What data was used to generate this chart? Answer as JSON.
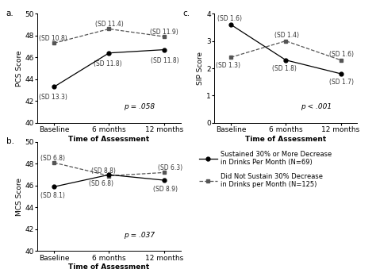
{
  "timepoints": [
    "Baseline",
    "6 months",
    "12 months"
  ],
  "pcs": {
    "solid_circle": [
      43.3,
      46.4,
      46.7
    ],
    "dashed_square": [
      47.3,
      48.6,
      47.9
    ],
    "solid_sd": [
      "(SD 13.3)",
      "(SD 11.8)",
      "(SD 11.8)"
    ],
    "dashed_sd": [
      "(SD 10.8)",
      "(SD 11.4)",
      "(SD 11.9)"
    ],
    "ylabel": "PCS Score",
    "ylim": [
      40,
      50
    ],
    "yticks": [
      40,
      42,
      44,
      46,
      48,
      50
    ],
    "pvalue": "p = .058",
    "label": "a."
  },
  "mcs": {
    "solid_circle": [
      45.9,
      47.0,
      46.5
    ],
    "dashed_square": [
      48.1,
      46.9,
      47.2
    ],
    "solid_sd": [
      "(SD 8.1)",
      "(SD 6.8)",
      "(SD 8.9)"
    ],
    "dashed_sd": [
      "(SD 6.8)",
      "(SD 8.8)",
      "(SD 6.3)"
    ],
    "ylabel": "MCS Score",
    "ylim": [
      40,
      50
    ],
    "yticks": [
      40,
      42,
      44,
      46,
      48,
      50
    ],
    "pvalue": "p = .037",
    "label": "b."
  },
  "sip": {
    "solid_circle": [
      3.6,
      2.3,
      1.8
    ],
    "dashed_square": [
      2.4,
      3.0,
      2.3
    ],
    "solid_sd": [
      "(SD 1.6)",
      "(SD 1.8)",
      "(SD 1.7)"
    ],
    "dashed_sd": [
      "(SD 1.3)",
      "(SD 1.4)",
      "(SD 1.6)"
    ],
    "ylabel": "SIP Score",
    "ylim": [
      0,
      4
    ],
    "yticks": [
      0,
      1,
      2,
      3,
      4
    ],
    "pvalue": "p < .001",
    "label": "c."
  },
  "legend": {
    "solid": "Sustained 30% or More Decrease\nin Drinks Per Month (N=69)",
    "dashed": "Did Not Sustain 30% Decrease\nin Drinks per Month (N=125)"
  },
  "solid_color": "#000000",
  "dashed_color": "#555555",
  "xlabel": "Time of Assessment",
  "font_size": 6.5,
  "annot_font_size": 5.5
}
